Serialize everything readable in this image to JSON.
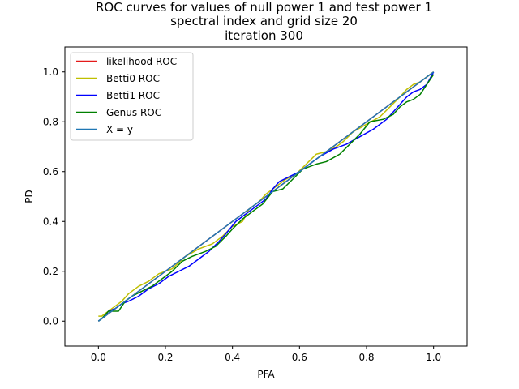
{
  "chart_data": {
    "type": "line",
    "title_lines": [
      "ROC curves for values of null power 1 and test power 1",
      "spectral index and grid size 20",
      "iteration 300"
    ],
    "xlabel": "PFA",
    "ylabel": "PD",
    "xlim": [
      -0.1,
      1.1
    ],
    "ylim": [
      -0.1,
      1.1
    ],
    "xticks": [
      0.0,
      0.2,
      0.4,
      0.6,
      0.8,
      1.0
    ],
    "yticks": [
      0.0,
      0.2,
      0.4,
      0.6,
      0.8,
      1.0
    ],
    "xtick_labels": [
      "0.0",
      "0.2",
      "0.4",
      "0.6",
      "0.8",
      "1.0"
    ],
    "ytick_labels": [
      "0.0",
      "0.2",
      "0.4",
      "0.6",
      "0.8",
      "1.0"
    ],
    "grid": false,
    "legend_position": "top-left",
    "series": [
      {
        "name": "likelihood ROC",
        "color": "#e41a1a",
        "x": [
          0.0,
          1.0
        ],
        "y": [
          0.0,
          1.0
        ]
      },
      {
        "name": "Betti0 ROC",
        "color": "#bfbf00",
        "x": [
          0.0,
          0.01,
          0.02,
          0.03,
          0.05,
          0.07,
          0.09,
          0.12,
          0.15,
          0.18,
          0.22,
          0.26,
          0.3,
          0.34,
          0.37,
          0.4,
          0.43,
          0.45,
          0.48,
          0.5,
          0.53,
          0.56,
          0.59,
          0.62,
          0.65,
          0.68,
          0.71,
          0.73,
          0.76,
          0.8,
          0.84,
          0.87,
          0.9,
          0.92,
          0.94,
          0.96,
          0.98,
          1.0
        ],
        "y": [
          0.02,
          0.02,
          0.03,
          0.04,
          0.06,
          0.08,
          0.11,
          0.14,
          0.16,
          0.19,
          0.21,
          0.26,
          0.29,
          0.31,
          0.34,
          0.38,
          0.4,
          0.45,
          0.48,
          0.51,
          0.54,
          0.57,
          0.59,
          0.63,
          0.67,
          0.68,
          0.7,
          0.72,
          0.76,
          0.79,
          0.82,
          0.86,
          0.9,
          0.93,
          0.95,
          0.96,
          0.98,
          1.0
        ]
      },
      {
        "name": "Betti1 ROC",
        "color": "#0000ff",
        "x": [
          0.0,
          0.02,
          0.03,
          0.05,
          0.07,
          0.09,
          0.12,
          0.15,
          0.18,
          0.21,
          0.24,
          0.27,
          0.3,
          0.33,
          0.36,
          0.38,
          0.41,
          0.44,
          0.47,
          0.5,
          0.52,
          0.54,
          0.57,
          0.6,
          0.63,
          0.66,
          0.7,
          0.74,
          0.78,
          0.82,
          0.86,
          0.88,
          0.9,
          0.92,
          0.94,
          0.96,
          0.98,
          1.0
        ],
        "y": [
          0.0,
          0.02,
          0.04,
          0.05,
          0.07,
          0.08,
          0.1,
          0.13,
          0.15,
          0.18,
          0.2,
          0.22,
          0.25,
          0.28,
          0.32,
          0.35,
          0.4,
          0.43,
          0.46,
          0.49,
          0.53,
          0.56,
          0.58,
          0.6,
          0.63,
          0.66,
          0.69,
          0.71,
          0.74,
          0.77,
          0.81,
          0.84,
          0.87,
          0.9,
          0.92,
          0.93,
          0.95,
          1.0
        ]
      },
      {
        "name": "Genus ROC",
        "color": "#008000",
        "x": [
          0.0,
          0.01,
          0.03,
          0.06,
          0.08,
          0.1,
          0.13,
          0.16,
          0.19,
          0.22,
          0.25,
          0.28,
          0.32,
          0.35,
          0.38,
          0.4,
          0.43,
          0.46,
          0.49,
          0.52,
          0.55,
          0.58,
          0.61,
          0.65,
          0.68,
          0.72,
          0.75,
          0.78,
          0.81,
          0.85,
          0.88,
          0.9,
          0.92,
          0.94,
          0.96,
          0.98,
          1.0
        ],
        "y": [
          0.0,
          0.01,
          0.04,
          0.04,
          0.08,
          0.1,
          0.12,
          0.14,
          0.17,
          0.2,
          0.24,
          0.26,
          0.28,
          0.3,
          0.34,
          0.37,
          0.41,
          0.44,
          0.47,
          0.52,
          0.53,
          0.57,
          0.61,
          0.63,
          0.64,
          0.67,
          0.71,
          0.75,
          0.8,
          0.81,
          0.83,
          0.86,
          0.88,
          0.89,
          0.91,
          0.95,
          0.99
        ]
      },
      {
        "name": "X = y",
        "color": "#1f77b4",
        "x": [
          0.0,
          1.0
        ],
        "y": [
          0.0,
          1.0
        ]
      }
    ]
  }
}
